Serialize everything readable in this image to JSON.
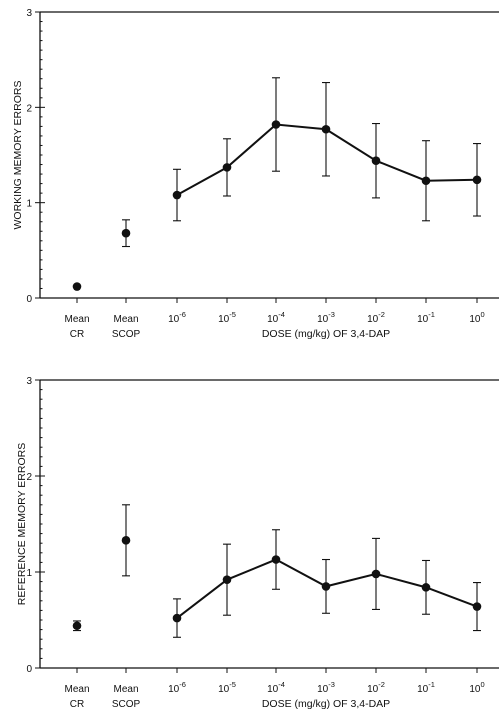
{
  "chart_data": [
    {
      "type": "line",
      "ylabel": "WORKING MEMORY ERRORS",
      "xlabel": "DOSE (mg/kg) OF 3,4-DAP",
      "ylim": [
        0,
        3
      ],
      "yticks": [
        "0",
        "1",
        "2",
        "3"
      ],
      "reference_points": [
        {
          "label_line1": "Mean",
          "label_line2": "CR",
          "value": 0.12,
          "err": 0.0
        },
        {
          "label_line1": "Mean",
          "label_line2": "SCOP",
          "value": 0.68,
          "err": 0.14
        }
      ],
      "dose_ticks": [
        {
          "base": "10",
          "exp": "-6"
        },
        {
          "base": "10",
          "exp": "-5"
        },
        {
          "base": "10",
          "exp": "-4"
        },
        {
          "base": "10",
          "exp": "-3"
        },
        {
          "base": "10",
          "exp": "-2"
        },
        {
          "base": "10",
          "exp": "-1"
        },
        {
          "base": "10",
          "exp": "0"
        }
      ],
      "series": [
        {
          "values": [
            1.08,
            1.37,
            1.82,
            1.77,
            1.44,
            1.23,
            1.24
          ],
          "err": [
            0.27,
            0.3,
            0.49,
            0.49,
            0.39,
            0.42,
            0.38
          ]
        }
      ],
      "grid": false
    },
    {
      "type": "line",
      "ylabel": "REFERENCE MEMORY ERRORS",
      "xlabel": "DOSE (mg/kg) OF 3,4-DAP",
      "ylim": [
        0,
        3
      ],
      "yticks": [
        "0",
        "1",
        "2",
        "3"
      ],
      "reference_points": [
        {
          "label_line1": "Mean",
          "label_line2": "CR",
          "value": 0.44,
          "err": 0.05
        },
        {
          "label_line1": "Mean",
          "label_line2": "SCOP",
          "value": 1.33,
          "err": 0.37
        }
      ],
      "dose_ticks": [
        {
          "base": "10",
          "exp": "-6"
        },
        {
          "base": "10",
          "exp": "-5"
        },
        {
          "base": "10",
          "exp": "-4"
        },
        {
          "base": "10",
          "exp": "-3"
        },
        {
          "base": "10",
          "exp": "-2"
        },
        {
          "base": "10",
          "exp": "-1"
        },
        {
          "base": "10",
          "exp": "0"
        }
      ],
      "series": [
        {
          "values": [
            0.52,
            0.92,
            1.13,
            0.85,
            0.98,
            0.84,
            0.64
          ],
          "err": [
            0.2,
            0.37,
            0.31,
            0.28,
            0.37,
            0.28,
            0.25
          ]
        }
      ],
      "grid": false
    }
  ]
}
